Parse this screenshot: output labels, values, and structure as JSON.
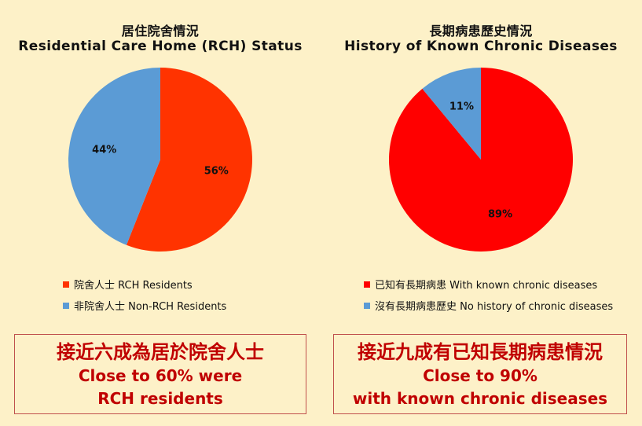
{
  "chart_data": [
    {
      "type": "pie",
      "title_zh": "居住院舍情況",
      "title": "Residential Care Home (RCH) Status",
      "slices": [
        {
          "label": "院舍人士 RCH Residents",
          "value": 56,
          "display": "56%",
          "color": "#ff3300"
        },
        {
          "label": "非院舍人士 Non-RCH Residents",
          "value": 44,
          "display": "44%",
          "color": "#5b9bd5"
        }
      ]
    },
    {
      "type": "pie",
      "title_zh": "長期病患歷史情況",
      "title": "History of Known Chronic Diseases",
      "slices": [
        {
          "label": "已知有長期病患 With known chronic diseases",
          "value": 89,
          "display": "89%",
          "color": "#ff0000"
        },
        {
          "label": "沒有長期病患歷史 No history of chronic diseases",
          "value": 11,
          "display": "11%",
          "color": "#5b9bd5"
        }
      ]
    }
  ],
  "callouts": [
    {
      "zh": "接近六成為居於院舍人士",
      "en1": "Close to 60% were",
      "en2": "RCH residents"
    },
    {
      "zh": "接近九成有已知長期病患情況",
      "en1": "Close to 90%",
      "en2": "with known chronic diseases"
    }
  ]
}
